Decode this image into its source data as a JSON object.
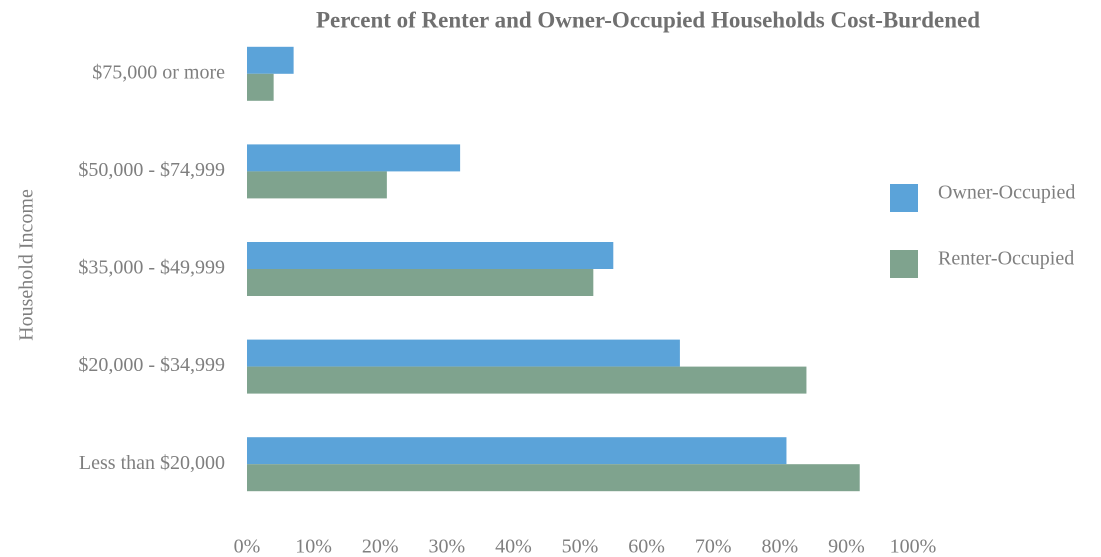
{
  "chart_data": {
    "type": "hbar",
    "title": "Percent of Renter and Owner-Occupied Households Cost-Burdened",
    "y_label": "Household Income",
    "categories": [
      "$75,000 or more",
      "$50,000 - $74,999",
      "$35,000 - $49,999",
      "$20,000 - $34,999",
      "Less than $20,000"
    ],
    "series": [
      {
        "name": "Owner-Occupied",
        "color": "#5ba3d9",
        "values": [
          7,
          32,
          55,
          65,
          81
        ]
      },
      {
        "name": "Renter-Occupied",
        "color": "#7fa38e",
        "values": [
          4,
          21,
          52,
          84,
          92
        ]
      }
    ],
    "xlim": [
      0,
      100
    ],
    "xticks": [
      {
        "value": 0,
        "label": "0%"
      },
      {
        "value": 10,
        "label": "10%"
      },
      {
        "value": 20,
        "label": "20%"
      },
      {
        "value": 30,
        "label": "30%"
      },
      {
        "value": 40,
        "label": "40%"
      },
      {
        "value": 50,
        "label": "50%"
      },
      {
        "value": 60,
        "label": "60%"
      },
      {
        "value": 70,
        "label": "70%"
      },
      {
        "value": 80,
        "label": "80%"
      },
      {
        "value": 90,
        "label": "90%"
      },
      {
        "value": 100,
        "label": "100%"
      }
    ],
    "grid": false,
    "legend": "right"
  }
}
